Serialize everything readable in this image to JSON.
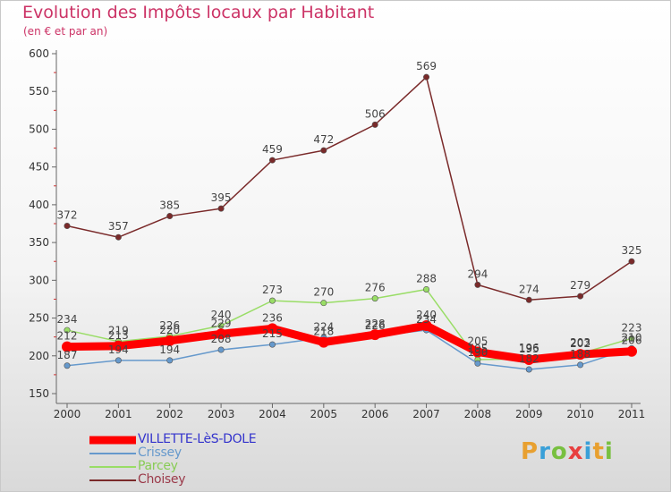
{
  "title": "Evolution des Impôts locaux par Habitant",
  "subtitle": "(en € et par an)",
  "logo": {
    "letters": [
      "P",
      "r",
      "o",
      "x",
      "i",
      "t",
      "i"
    ],
    "colors": [
      "#e8a030",
      "#3aa0d8",
      "#78c040",
      "#e84040",
      "#3aa0d8",
      "#e8a030",
      "#78c040"
    ]
  },
  "chart_data": {
    "type": "line",
    "x": [
      "2000",
      "2001",
      "2002",
      "2003",
      "2004",
      "2005",
      "2006",
      "2007",
      "2008",
      "2009",
      "2010",
      "2011"
    ],
    "ylim": [
      150,
      600
    ],
    "yticks": [
      150,
      200,
      250,
      300,
      350,
      400,
      450,
      500,
      550,
      600
    ],
    "series": [
      {
        "name": "VILLETTE-LèS-DOLE",
        "color": "#ff0000",
        "legend_text_color": "#3333cc",
        "emphasis": true,
        "values": [
          212,
          213,
          220,
          229,
          236,
          218,
          228,
          240,
          205,
          195,
          202,
          206
        ],
        "labels": [
          "212",
          "213",
          "220",
          "229",
          "236",
          "218",
          "228",
          "240",
          "205",
          "195",
          "202",
          "206"
        ]
      },
      {
        "name": "Crissey",
        "color": "#6699cc",
        "legend_text_color": "#6699cc",
        "values": [
          187,
          194,
          194,
          208,
          215,
          224,
          226,
          234,
          190,
          182,
          188,
          210
        ],
        "labels": [
          "187",
          "194",
          "194",
          "208",
          "215",
          "224",
          "226",
          "234",
          "190",
          "182",
          "188",
          "210"
        ]
      },
      {
        "name": "Parcey",
        "color": "#99dd66",
        "legend_text_color": "#88cc55",
        "values": [
          234,
          219,
          226,
          240,
          273,
          270,
          276,
          288,
          195,
          196,
          203,
          223
        ],
        "labels": [
          "234",
          "219",
          "226",
          "240",
          "273",
          "270",
          "276",
          "288",
          "195",
          "196",
          "203",
          "223"
        ]
      },
      {
        "name": "Choisey",
        "color": "#7a2a2a",
        "legend_text_color": "#9b3a4a",
        "values": [
          372,
          357,
          385,
          395,
          459,
          472,
          506,
          569,
          294,
          274,
          279,
          325
        ],
        "labels": [
          "372",
          "357",
          "385",
          "395",
          "459",
          "472",
          "506",
          "569",
          "294",
          "274",
          "279",
          "325"
        ]
      }
    ]
  }
}
